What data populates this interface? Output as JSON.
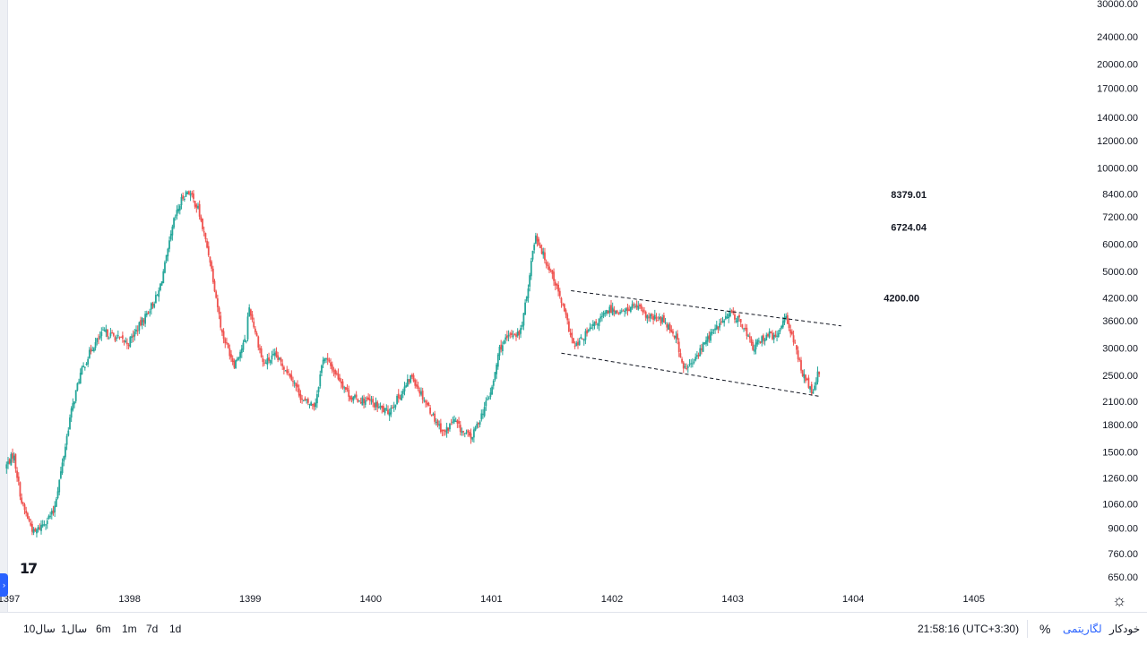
{
  "chart_data": {
    "type": "candlestick",
    "scale": "log",
    "x_ticks": [
      "1397",
      "1398",
      "1399",
      "1400",
      "1401",
      "1402",
      "1403",
      "1404",
      "1405"
    ],
    "y_ticks": [
      "30000.00",
      "24000.00",
      "20000.00",
      "17000.00",
      "14000.00",
      "12000.00",
      "10000.00",
      "8400.00",
      "7200.00",
      "6000.00",
      "5000.00",
      "4200.00",
      "3600.00",
      "3000.00",
      "2500.00",
      "2100.00",
      "1800.00",
      "1500.00",
      "1260.00",
      "1060.00",
      "900.00",
      "760.00",
      "650.00"
    ],
    "ylim": [
      620,
      30500
    ],
    "annotations": [
      {
        "text": "8379.01",
        "price": 8379.01
      },
      {
        "text": "6724.04",
        "price": 6724.04
      },
      {
        "text": "4200.00",
        "price": 4200.0
      }
    ],
    "channel": {
      "upper": [
        {
          "x": 1401.66,
          "y": 4400
        },
        {
          "x": 1403.9,
          "y": 3480
        }
      ],
      "lower": [
        {
          "x": 1401.58,
          "y": 2900
        },
        {
          "x": 1403.73,
          "y": 2170
        }
      ]
    },
    "price_path": [
      {
        "x": 1396.98,
        "y": 1350
      },
      {
        "x": 1397.05,
        "y": 1480
      },
      {
        "x": 1397.12,
        "y": 1060
      },
      {
        "x": 1397.22,
        "y": 870
      },
      {
        "x": 1397.38,
        "y": 1000
      },
      {
        "x": 1397.45,
        "y": 1350
      },
      {
        "x": 1397.52,
        "y": 1900
      },
      {
        "x": 1397.6,
        "y": 2500
      },
      {
        "x": 1397.7,
        "y": 3000
      },
      {
        "x": 1397.8,
        "y": 3350
      },
      {
        "x": 1398.0,
        "y": 3100
      },
      {
        "x": 1398.12,
        "y": 3600
      },
      {
        "x": 1398.25,
        "y": 4300
      },
      {
        "x": 1398.32,
        "y": 5500
      },
      {
        "x": 1398.38,
        "y": 7000
      },
      {
        "x": 1398.45,
        "y": 8200
      },
      {
        "x": 1398.5,
        "y": 8600
      },
      {
        "x": 1398.58,
        "y": 7600
      },
      {
        "x": 1398.68,
        "y": 5400
      },
      {
        "x": 1398.78,
        "y": 3300
      },
      {
        "x": 1398.88,
        "y": 2700
      },
      {
        "x": 1398.98,
        "y": 3200
      },
      {
        "x": 1399.0,
        "y": 4000
      },
      {
        "x": 1399.06,
        "y": 3300
      },
      {
        "x": 1399.12,
        "y": 2700
      },
      {
        "x": 1399.22,
        "y": 2850
      },
      {
        "x": 1399.35,
        "y": 2500
      },
      {
        "x": 1399.45,
        "y": 2100
      },
      {
        "x": 1399.55,
        "y": 2050
      },
      {
        "x": 1399.62,
        "y": 2850
      },
      {
        "x": 1399.75,
        "y": 2450
      },
      {
        "x": 1399.85,
        "y": 2150
      },
      {
        "x": 1400.0,
        "y": 2100
      },
      {
        "x": 1400.15,
        "y": 1950
      },
      {
        "x": 1400.28,
        "y": 2250
      },
      {
        "x": 1400.35,
        "y": 2500
      },
      {
        "x": 1400.45,
        "y": 2150
      },
      {
        "x": 1400.55,
        "y": 1850
      },
      {
        "x": 1400.62,
        "y": 1700
      },
      {
        "x": 1400.7,
        "y": 1850
      },
      {
        "x": 1400.78,
        "y": 1700
      },
      {
        "x": 1400.85,
        "y": 1650
      },
      {
        "x": 1400.95,
        "y": 2000
      },
      {
        "x": 1401.02,
        "y": 2300
      },
      {
        "x": 1401.08,
        "y": 3000
      },
      {
        "x": 1401.18,
        "y": 3300
      },
      {
        "x": 1401.25,
        "y": 3300
      },
      {
        "x": 1401.3,
        "y": 4100
      },
      {
        "x": 1401.35,
        "y": 5600
      },
      {
        "x": 1401.38,
        "y": 6400
      },
      {
        "x": 1401.45,
        "y": 5500
      },
      {
        "x": 1401.52,
        "y": 4900
      },
      {
        "x": 1401.6,
        "y": 4000
      },
      {
        "x": 1401.7,
        "y": 3000
      },
      {
        "x": 1401.8,
        "y": 3300
      },
      {
        "x": 1401.9,
        "y": 3600
      },
      {
        "x": 1402.0,
        "y": 3900
      },
      {
        "x": 1402.1,
        "y": 3800
      },
      {
        "x": 1402.2,
        "y": 4000
      },
      {
        "x": 1402.3,
        "y": 3700
      },
      {
        "x": 1402.45,
        "y": 3600
      },
      {
        "x": 1402.55,
        "y": 3200
      },
      {
        "x": 1402.6,
        "y": 2600
      },
      {
        "x": 1402.68,
        "y": 2700
      },
      {
        "x": 1402.8,
        "y": 3200
      },
      {
        "x": 1402.9,
        "y": 3500
      },
      {
        "x": 1403.0,
        "y": 3800
      },
      {
        "x": 1403.1,
        "y": 3500
      },
      {
        "x": 1403.18,
        "y": 3000
      },
      {
        "x": 1403.3,
        "y": 3300
      },
      {
        "x": 1403.38,
        "y": 3200
      },
      {
        "x": 1403.45,
        "y": 3800
      },
      {
        "x": 1403.52,
        "y": 3100
      },
      {
        "x": 1403.6,
        "y": 2500
      },
      {
        "x": 1403.68,
        "y": 2200
      },
      {
        "x": 1403.72,
        "y": 2550
      }
    ],
    "colors": {
      "up": "#26a69a",
      "down": "#ef5350"
    }
  },
  "icons": {
    "logo": "tradingview-logo",
    "settings": "gear-icon",
    "expand": "chevron-right-icon"
  },
  "bottom_bar": {
    "timeframes": [
      "10سال",
      "1سال",
      "6m",
      "1m",
      "7d",
      "1d"
    ],
    "clock": "21:58:16 (UTC+3:30)",
    "percent_label": "%",
    "log_label": "لگاریتمی",
    "auto_label": "خودکار"
  },
  "theme": {
    "accent": "#2962ff",
    "grid": "#ffffff",
    "text": "#131722",
    "border": "#e0e3eb"
  }
}
